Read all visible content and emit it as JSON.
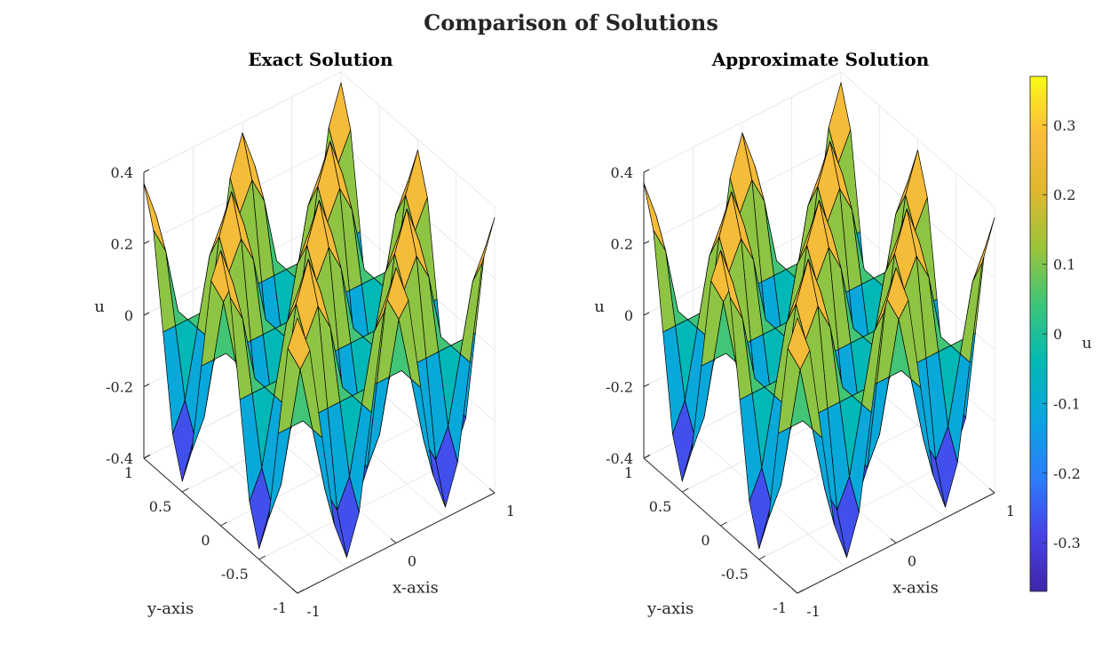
{
  "figure": {
    "suptitle": "Comparison of Solutions"
  },
  "chart_data": [
    {
      "type": "surface",
      "title": "Exact Solution",
      "xlabel": "x-axis",
      "ylabel": "y-axis",
      "zlabel": "u",
      "xlim": [
        -1,
        1
      ],
      "ylim": [
        -1,
        1
      ],
      "zlim": [
        -0.4,
        0.4
      ],
      "xticks": [
        -1,
        0,
        1
      ],
      "xtick_labels": [
        "-1",
        "0",
        "1"
      ],
      "yticks": [
        -1,
        -0.5,
        0,
        0.5,
        1
      ],
      "ytick_labels": [
        "-1",
        "-0.5",
        "0",
        "0.5",
        "1"
      ],
      "zticks": [
        -0.4,
        -0.2,
        0,
        0.2,
        0.4
      ],
      "ztick_labels": [
        "-0.4",
        "-0.2",
        "0",
        "0.2",
        "0.4"
      ],
      "grid_n": 17,
      "function": "0.37*cos(2*pi*x)*cos(2*pi*y)",
      "peak": 0.37,
      "trough": -0.37,
      "grid": true
    },
    {
      "type": "surface",
      "title": "Approximate Solution",
      "xlabel": "x-axis",
      "ylabel": "y-axis",
      "zlabel": "u",
      "xlim": [
        -1,
        1
      ],
      "ylim": [
        -1,
        1
      ],
      "zlim": [
        -0.4,
        0.4
      ],
      "xticks": [
        -1,
        0,
        1
      ],
      "xtick_labels": [
        "-1",
        "0",
        "1"
      ],
      "yticks": [
        -1,
        -0.5,
        0,
        0.5,
        1
      ],
      "ytick_labels": [
        "-1",
        "-0.5",
        "0",
        "0.5",
        "1"
      ],
      "zticks": [
        -0.4,
        -0.2,
        0,
        0.2,
        0.4
      ],
      "ztick_labels": [
        "-0.4",
        "-0.2",
        "0",
        "0.2",
        "0.4"
      ],
      "grid_n": 17,
      "function": "0.37*cos(2*pi*x)*cos(2*pi*y)",
      "peak": 0.37,
      "trough": -0.37,
      "grid": true
    }
  ],
  "colorbar": {
    "label": "u",
    "min": -0.37,
    "max": 0.37,
    "ticks": [
      -0.3,
      -0.2,
      -0.1,
      0,
      0.1,
      0.2,
      0.3
    ],
    "tick_labels": [
      "-0.3",
      "-0.2",
      "-0.1",
      "0",
      "0.1",
      "0.2",
      "0.3"
    ],
    "colormap": "parula",
    "colormap_stops": [
      "#3e26a8",
      "#4743e8",
      "#2c7ef8",
      "#0aa5e0",
      "#00b9b4",
      "#3cc57a",
      "#9bc43a",
      "#dfb82e",
      "#fbbd3c",
      "#f9fa14"
    ]
  },
  "colors": {
    "background": "#ffffff",
    "axis": "#262626",
    "gridline": "#e3e3e3",
    "edge": "#000000"
  }
}
